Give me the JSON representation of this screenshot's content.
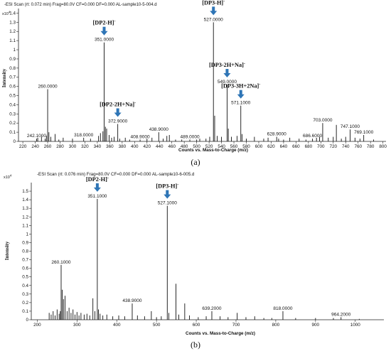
{
  "figure": {
    "panel_a_caption": "(a)",
    "panel_b_caption": "(b)"
  },
  "chart_data": [
    {
      "type": "bar",
      "panel": "a",
      "scan_info": "-ESI Scan (rt: 0.072 min) Frag=80.0V CF=0.000 DF=0.000 AL-sample10-5-004.d",
      "y_multiplier": "x10^4",
      "xlabel": "Counts vs. Mass-to-Charge (m/z)",
      "ylabel": "Intensity",
      "xlim": [
        213,
        805
      ],
      "ylim": [
        0,
        1.45
      ],
      "x_ticks": [
        220,
        240,
        260,
        280,
        300,
        320,
        340,
        360,
        380,
        400,
        420,
        440,
        460,
        480,
        500,
        520,
        540,
        560,
        580,
        600,
        620,
        640,
        660,
        680,
        700,
        720,
        740,
        760,
        780,
        800
      ],
      "y_ticks": [
        0,
        0.1,
        0.2,
        0.3,
        0.4,
        0.5,
        0.6,
        0.7,
        0.8,
        0.9,
        1.0,
        1.1,
        1.2,
        1.3,
        1.4
      ],
      "y_tick_labels": [
        "0",
        "0.1",
        "0.2",
        "0.3",
        "0.4",
        "0.5",
        "0.6",
        "0.7",
        "0.8",
        "0.9",
        "1",
        "1.1",
        "1.2",
        "1.3",
        "1.4"
      ],
      "peaks": [
        {
          "mz": 242.1,
          "intensity": 0.03,
          "label": "242.1000"
        },
        {
          "mz": 244,
          "intensity": 0.04
        },
        {
          "mz": 250,
          "intensity": 0.05
        },
        {
          "mz": 256,
          "intensity": 0.03
        },
        {
          "mz": 258,
          "intensity": 0.06
        },
        {
          "mz": 260.0,
          "intensity": 0.57,
          "label": "260.0000"
        },
        {
          "mz": 262,
          "intensity": 0.1
        },
        {
          "mz": 265,
          "intensity": 0.05
        },
        {
          "mz": 272,
          "intensity": 0.08
        },
        {
          "mz": 278,
          "intensity": 0.02
        },
        {
          "mz": 285,
          "intensity": 0.04
        },
        {
          "mz": 300,
          "intensity": 0.03
        },
        {
          "mz": 318.0,
          "intensity": 0.04,
          "label": "318.0000"
        },
        {
          "mz": 329,
          "intensity": 0.03
        },
        {
          "mz": 342,
          "intensity": 0.06
        },
        {
          "mz": 345,
          "intensity": 0.09
        },
        {
          "mz": 349,
          "intensity": 0.11
        },
        {
          "mz": 351.0,
          "intensity": 1.08,
          "label": "351.0000"
        },
        {
          "mz": 353,
          "intensity": 0.16
        },
        {
          "mz": 355,
          "intensity": 0.14
        },
        {
          "mz": 359,
          "intensity": 0.07
        },
        {
          "mz": 363,
          "intensity": 0.04
        },
        {
          "mz": 367,
          "intensity": 0.05
        },
        {
          "mz": 372.9,
          "intensity": 0.19,
          "label": "372.9000"
        },
        {
          "mz": 376,
          "intensity": 0.03
        },
        {
          "mz": 385,
          "intensity": 0.04
        },
        {
          "mz": 392,
          "intensity": 0.02
        },
        {
          "mz": 408.9,
          "intensity": 0.02,
          "label": "408.9000"
        },
        {
          "mz": 420,
          "intensity": 0.03
        },
        {
          "mz": 428,
          "intensity": 0.04
        },
        {
          "mz": 438.9,
          "intensity": 0.1,
          "label": "438.9000"
        },
        {
          "mz": 446,
          "intensity": 0.03
        },
        {
          "mz": 452,
          "intensity": 0.06
        },
        {
          "mz": 456,
          "intensity": 0.07
        },
        {
          "mz": 466,
          "intensity": 0.02
        },
        {
          "mz": 476,
          "intensity": 0.02
        },
        {
          "mz": 489.0,
          "intensity": 0.02,
          "label": "489.0000"
        },
        {
          "mz": 500,
          "intensity": 0.02
        },
        {
          "mz": 505,
          "intensity": 0.03
        },
        {
          "mz": 515,
          "intensity": 0.03
        },
        {
          "mz": 521,
          "intensity": 0.05
        },
        {
          "mz": 527.0,
          "intensity": 1.3,
          "label": "527.0000"
        },
        {
          "mz": 529,
          "intensity": 0.28
        },
        {
          "mz": 533,
          "intensity": 0.06
        },
        {
          "mz": 540,
          "intensity": 0.05
        },
        {
          "mz": 549.0,
          "intensity": 0.62,
          "label": "549.0000"
        },
        {
          "mz": 551,
          "intensity": 0.14
        },
        {
          "mz": 556,
          "intensity": 0.05
        },
        {
          "mz": 565,
          "intensity": 0.06
        },
        {
          "mz": 571.1,
          "intensity": 0.39,
          "label": "571.1000"
        },
        {
          "mz": 573,
          "intensity": 0.08
        },
        {
          "mz": 580,
          "intensity": 0.03
        },
        {
          "mz": 593,
          "intensity": 0.05
        },
        {
          "mz": 608,
          "intensity": 0.03
        },
        {
          "mz": 615,
          "intensity": 0.04
        },
        {
          "mz": 628.9,
          "intensity": 0.05,
          "label": "628.9000"
        },
        {
          "mz": 632,
          "intensity": 0.03
        },
        {
          "mz": 640,
          "intensity": 0.02
        },
        {
          "mz": 650,
          "intensity": 0.04
        },
        {
          "mz": 665,
          "intensity": 0.03
        },
        {
          "mz": 676,
          "intensity": 0.02
        },
        {
          "mz": 686.6,
          "intensity": 0.03,
          "label": "686.6000"
        },
        {
          "mz": 693,
          "intensity": 0.04
        },
        {
          "mz": 698,
          "intensity": 0.05
        },
        {
          "mz": 703.0,
          "intensity": 0.2,
          "label": "703.0000"
        },
        {
          "mz": 712,
          "intensity": 0.04
        },
        {
          "mz": 720,
          "intensity": 0.05
        },
        {
          "mz": 725,
          "intensity": 0.18
        },
        {
          "mz": 733,
          "intensity": 0.03
        },
        {
          "mz": 740,
          "intensity": 0.05
        },
        {
          "mz": 747.1,
          "intensity": 0.13,
          "label": "747.1000"
        },
        {
          "mz": 755,
          "intensity": 0.04
        },
        {
          "mz": 763,
          "intensity": 0.03
        },
        {
          "mz": 769.1,
          "intensity": 0.07,
          "label": "769.1000"
        },
        {
          "mz": 785,
          "intensity": 0.02
        }
      ],
      "annotations": [
        {
          "text": "[DP2-H]⁻",
          "mz": 351.0
        },
        {
          "text": "[DP2-2H+Na]⁻",
          "mz": 372.9
        },
        {
          "text": "[DP3-H]⁻",
          "mz": 527.0
        },
        {
          "text": "[DP3-2H+Na]⁻",
          "mz": 549.0
        },
        {
          "text": "[DP3-3H+2Na]⁻",
          "mz": 571.1
        }
      ]
    },
    {
      "type": "bar",
      "panel": "b",
      "scan_info": "-ESI Scan (rt: 0.076 min) Frag=80.0V CF=0.000 DF=0.000 AL-sample10-6-005.d",
      "y_multiplier": "x10^4",
      "xlabel": "Counts vs. Mass-to-Charge (m/z)",
      "ylabel": "Intensity",
      "xlim": [
        185,
        1072
      ],
      "ylim": [
        0,
        1.6
      ],
      "x_ticks": [
        200,
        300,
        400,
        500,
        600,
        700,
        800,
        900,
        1000
      ],
      "y_ticks": [
        0,
        0.1,
        0.2,
        0.3,
        0.4,
        0.5,
        0.6,
        0.7,
        0.8,
        0.9,
        1.0,
        1.1,
        1.2,
        1.3,
        1.4,
        1.5
      ],
      "y_tick_labels": [
        "0",
        "0.1",
        "0.2",
        "0.3",
        "0.4",
        "0.5",
        "0.6",
        "0.7",
        "0.8",
        "0.9",
        "1",
        "1.1",
        "1.2",
        "1.3",
        "1.4",
        "1.5"
      ],
      "peaks": [
        {
          "mz": 230,
          "intensity": 0.08
        },
        {
          "mz": 235,
          "intensity": 0.06
        },
        {
          "mz": 240,
          "intensity": 0.1
        },
        {
          "mz": 245,
          "intensity": 0.05
        },
        {
          "mz": 250,
          "intensity": 0.12
        },
        {
          "mz": 255,
          "intensity": 0.07
        },
        {
          "mz": 258,
          "intensity": 0.1
        },
        {
          "mz": 260.1,
          "intensity": 0.64,
          "label": "260.1000"
        },
        {
          "mz": 263,
          "intensity": 0.35
        },
        {
          "mz": 266,
          "intensity": 0.24
        },
        {
          "mz": 270,
          "intensity": 0.28
        },
        {
          "mz": 275,
          "intensity": 0.1
        },
        {
          "mz": 280,
          "intensity": 0.14
        },
        {
          "mz": 285,
          "intensity": 0.08
        },
        {
          "mz": 290,
          "intensity": 0.12
        },
        {
          "mz": 295,
          "intensity": 0.06
        },
        {
          "mz": 300,
          "intensity": 0.09
        },
        {
          "mz": 305,
          "intensity": 0.05
        },
        {
          "mz": 310,
          "intensity": 0.08
        },
        {
          "mz": 318,
          "intensity": 0.06
        },
        {
          "mz": 325,
          "intensity": 0.07
        },
        {
          "mz": 332,
          "intensity": 0.05
        },
        {
          "mz": 340,
          "intensity": 0.25
        },
        {
          "mz": 345,
          "intensity": 0.1
        },
        {
          "mz": 351.1,
          "intensity": 1.41,
          "label": "351.1000"
        },
        {
          "mz": 354,
          "intensity": 0.12
        },
        {
          "mz": 358,
          "intensity": 0.07
        },
        {
          "mz": 365,
          "intensity": 0.05
        },
        {
          "mz": 375,
          "intensity": 0.06
        },
        {
          "mz": 390,
          "intensity": 0.04
        },
        {
          "mz": 405,
          "intensity": 0.05
        },
        {
          "mz": 420,
          "intensity": 0.04
        },
        {
          "mz": 438.9,
          "intensity": 0.19,
          "label": "438.9000"
        },
        {
          "mz": 452,
          "intensity": 0.05
        },
        {
          "mz": 470,
          "intensity": 0.04
        },
        {
          "mz": 487,
          "intensity": 0.1
        },
        {
          "mz": 500,
          "intensity": 0.03
        },
        {
          "mz": 512,
          "intensity": 0.04
        },
        {
          "mz": 527.1,
          "intensity": 1.33,
          "label": "527.1000"
        },
        {
          "mz": 531,
          "intensity": 0.08
        },
        {
          "mz": 549,
          "intensity": 0.42
        },
        {
          "mz": 556,
          "intensity": 0.06
        },
        {
          "mz": 571,
          "intensity": 0.19
        },
        {
          "mz": 583,
          "intensity": 0.05
        },
        {
          "mz": 605,
          "intensity": 0.03
        },
        {
          "mz": 625,
          "intensity": 0.04
        },
        {
          "mz": 639.2,
          "intensity": 0.1,
          "label": "639.2000"
        },
        {
          "mz": 660,
          "intensity": 0.04
        },
        {
          "mz": 680,
          "intensity": 0.03
        },
        {
          "mz": 703,
          "intensity": 0.08
        },
        {
          "mz": 725,
          "intensity": 0.03
        },
        {
          "mz": 747,
          "intensity": 0.04
        },
        {
          "mz": 770,
          "intensity": 0.02
        },
        {
          "mz": 790,
          "intensity": 0.02
        },
        {
          "mz": 818.0,
          "intensity": 0.1,
          "label": "818.0000"
        },
        {
          "mz": 850,
          "intensity": 0.02
        },
        {
          "mz": 900,
          "intensity": 0.02
        },
        {
          "mz": 945,
          "intensity": 0.02
        },
        {
          "mz": 964.2,
          "intensity": 0.03,
          "label": "964.2000"
        },
        {
          "mz": 1010,
          "intensity": 0.01
        }
      ],
      "annotations": [
        {
          "text": "[DP2-H]⁻",
          "mz": 351.1
        },
        {
          "text": "[DP3-H]⁻",
          "mz": 527.1
        }
      ]
    }
  ]
}
